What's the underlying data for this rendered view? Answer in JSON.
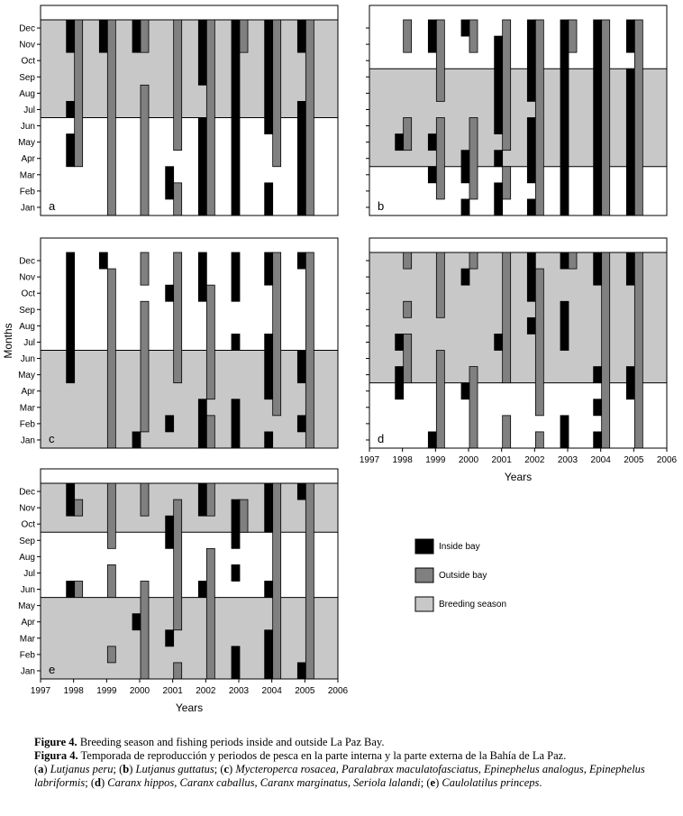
{
  "chart_data": {
    "type": "bar",
    "ylabel": "Months",
    "xlabel": "Years",
    "months": [
      "Jan",
      "Feb",
      "Mar",
      "Apr",
      "May",
      "Jun",
      "Jul",
      "Aug",
      "Sep",
      "Oct",
      "Nov",
      "Dec"
    ],
    "years": [
      "1997",
      "1998",
      "1999",
      "2000",
      "2001",
      "2002",
      "2003",
      "2004",
      "2005",
      "2006"
    ],
    "xlim": [
      1997,
      2006
    ],
    "legend": [
      {
        "key": "inside",
        "label": "Inside bay",
        "color": "#000000"
      },
      {
        "key": "outside",
        "label": "Outside bay",
        "color": "#808080"
      },
      {
        "key": "breeding",
        "label": "Breeding season",
        "color": "#c8c8c8"
      }
    ],
    "panels": [
      {
        "letter": "a",
        "breeding": [
          {
            "start": 7,
            "end": 12
          }
        ],
        "series": [
          {
            "name": "Inside bay",
            "key": "inside",
            "bars": [
              {
                "year": 1998,
                "start": 11,
                "end": 12
              },
              {
                "year": 1998,
                "start": 7,
                "end": 7
              },
              {
                "year": 1998,
                "start": 4,
                "end": 5
              },
              {
                "year": 1999,
                "start": 11,
                "end": 12
              },
              {
                "year": 2000,
                "start": 11,
                "end": 12
              },
              {
                "year": 2001,
                "start": 2,
                "end": 3
              },
              {
                "year": 2002,
                "start": 9,
                "end": 12
              },
              {
                "year": 2002,
                "start": 1,
                "end": 6
              },
              {
                "year": 2003,
                "start": 1,
                "end": 12
              },
              {
                "year": 2004,
                "start": 6,
                "end": 12
              },
              {
                "year": 2004,
                "start": 1,
                "end": 2
              },
              {
                "year": 2005,
                "start": 11,
                "end": 12
              },
              {
                "year": 2005,
                "start": 1,
                "end": 7
              }
            ]
          },
          {
            "name": "Outside bay",
            "key": "outside",
            "bars": [
              {
                "year": 1998,
                "start": 4,
                "end": 12
              },
              {
                "year": 1999,
                "start": 1,
                "end": 12
              },
              {
                "year": 2000,
                "start": 11,
                "end": 12
              },
              {
                "year": 2000,
                "start": 1,
                "end": 8
              },
              {
                "year": 2001,
                "start": 1,
                "end": 2
              },
              {
                "year": 2001,
                "start": 5,
                "end": 12
              },
              {
                "year": 2002,
                "start": 1,
                "end": 12
              },
              {
                "year": 2003,
                "start": 11,
                "end": 12
              },
              {
                "year": 2004,
                "start": 4,
                "end": 12
              },
              {
                "year": 2005,
                "start": 1,
                "end": 12
              }
            ]
          }
        ]
      },
      {
        "letter": "b",
        "breeding": [
          {
            "start": 4,
            "end": 9
          }
        ],
        "series": [
          {
            "name": "Inside bay",
            "key": "inside",
            "bars": [
              {
                "year": 1998,
                "start": 5,
                "end": 5
              },
              {
                "year": 1999,
                "start": 11,
                "end": 12
              },
              {
                "year": 1999,
                "start": 5,
                "end": 5
              },
              {
                "year": 1999,
                "start": 3,
                "end": 3
              },
              {
                "year": 2000,
                "start": 12,
                "end": 12
              },
              {
                "year": 2000,
                "start": 3,
                "end": 4
              },
              {
                "year": 2000,
                "start": 1,
                "end": 1
              },
              {
                "year": 2001,
                "start": 6,
                "end": 11
              },
              {
                "year": 2001,
                "start": 4,
                "end": 4
              },
              {
                "year": 2001,
                "start": 1,
                "end": 2
              },
              {
                "year": 2002,
                "start": 8,
                "end": 12
              },
              {
                "year": 2002,
                "start": 3,
                "end": 6
              },
              {
                "year": 2002,
                "start": 1,
                "end": 1
              },
              {
                "year": 2003,
                "start": 1,
                "end": 12
              },
              {
                "year": 2004,
                "start": 1,
                "end": 12
              },
              {
                "year": 2005,
                "start": 11,
                "end": 12
              },
              {
                "year": 2005,
                "start": 1,
                "end": 9
              }
            ]
          },
          {
            "name": "Outside bay",
            "key": "outside",
            "bars": [
              {
                "year": 1998,
                "start": 11,
                "end": 12
              },
              {
                "year": 1998,
                "start": 5,
                "end": 6
              },
              {
                "year": 1999,
                "start": 8,
                "end": 12
              },
              {
                "year": 1999,
                "start": 2,
                "end": 6
              },
              {
                "year": 2000,
                "start": 11,
                "end": 12
              },
              {
                "year": 2000,
                "start": 2,
                "end": 6
              },
              {
                "year": 2001,
                "start": 5,
                "end": 12
              },
              {
                "year": 2001,
                "start": 2,
                "end": 3
              },
              {
                "year": 2002,
                "start": 1,
                "end": 12
              },
              {
                "year": 2003,
                "start": 11,
                "end": 12
              },
              {
                "year": 2004,
                "start": 1,
                "end": 12
              },
              {
                "year": 2005,
                "start": 1,
                "end": 12
              }
            ]
          }
        ]
      },
      {
        "letter": "c",
        "breeding": [
          {
            "start": 1,
            "end": 6
          }
        ],
        "series": [
          {
            "name": "Inside bay",
            "key": "inside",
            "bars": [
              {
                "year": 1998,
                "start": 5,
                "end": 12
              },
              {
                "year": 1999,
                "start": 12,
                "end": 12
              },
              {
                "year": 2000,
                "start": 1,
                "end": 1
              },
              {
                "year": 2001,
                "start": 10,
                "end": 10
              },
              {
                "year": 2001,
                "start": 2,
                "end": 2
              },
              {
                "year": 2002,
                "start": 10,
                "end": 12
              },
              {
                "year": 2002,
                "start": 1,
                "end": 3
              },
              {
                "year": 2003,
                "start": 10,
                "end": 12
              },
              {
                "year": 2003,
                "start": 7,
                "end": 7
              },
              {
                "year": 2003,
                "start": 1,
                "end": 3
              },
              {
                "year": 2004,
                "start": 11,
                "end": 12
              },
              {
                "year": 2004,
                "start": 4,
                "end": 7
              },
              {
                "year": 2004,
                "start": 1,
                "end": 1
              },
              {
                "year": 2005,
                "start": 12,
                "end": 12
              },
              {
                "year": 2005,
                "start": 5,
                "end": 6
              },
              {
                "year": 2005,
                "start": 2,
                "end": 2
              }
            ]
          },
          {
            "name": "Outside bay",
            "key": "outside",
            "bars": [
              {
                "year": 1999,
                "start": 1,
                "end": 11
              },
              {
                "year": 2000,
                "start": 11,
                "end": 12
              },
              {
                "year": 2000,
                "start": 2,
                "end": 9
              },
              {
                "year": 2001,
                "start": 5,
                "end": 12
              },
              {
                "year": 2002,
                "start": 4,
                "end": 10
              },
              {
                "year": 2002,
                "start": 1,
                "end": 2
              },
              {
                "year": 2004,
                "start": 3,
                "end": 12
              },
              {
                "year": 2005,
                "start": 1,
                "end": 12
              }
            ]
          }
        ]
      },
      {
        "letter": "d",
        "breeding": [
          {
            "start": 5,
            "end": 12
          }
        ],
        "series": [
          {
            "name": "Inside bay",
            "key": "inside",
            "bars": [
              {
                "year": 1998,
                "start": 7,
                "end": 7
              },
              {
                "year": 1998,
                "start": 4,
                "end": 5
              },
              {
                "year": 1999,
                "start": 1,
                "end": 1
              },
              {
                "year": 2000,
                "start": 11,
                "end": 11
              },
              {
                "year": 2000,
                "start": 4,
                "end": 4
              },
              {
                "year": 2001,
                "start": 7,
                "end": 7
              },
              {
                "year": 2002,
                "start": 10,
                "end": 12
              },
              {
                "year": 2002,
                "start": 8,
                "end": 8
              },
              {
                "year": 2003,
                "start": 12,
                "end": 12
              },
              {
                "year": 2003,
                "start": 7,
                "end": 9
              },
              {
                "year": 2003,
                "start": 1,
                "end": 2
              },
              {
                "year": 2004,
                "start": 11,
                "end": 12
              },
              {
                "year": 2004,
                "start": 5,
                "end": 5
              },
              {
                "year": 2004,
                "start": 3,
                "end": 3
              },
              {
                "year": 2004,
                "start": 1,
                "end": 1
              },
              {
                "year": 2005,
                "start": 11,
                "end": 12
              },
              {
                "year": 2005,
                "start": 4,
                "end": 5
              }
            ]
          },
          {
            "name": "Outside bay",
            "key": "outside",
            "bars": [
              {
                "year": 1998,
                "start": 12,
                "end": 12
              },
              {
                "year": 1998,
                "start": 9,
                "end": 9
              },
              {
                "year": 1998,
                "start": 5,
                "end": 7
              },
              {
                "year": 1999,
                "start": 9,
                "end": 12
              },
              {
                "year": 1999,
                "start": 1,
                "end": 6
              },
              {
                "year": 2000,
                "start": 12,
                "end": 12
              },
              {
                "year": 2000,
                "start": 1,
                "end": 5
              },
              {
                "year": 2001,
                "start": 5,
                "end": 12
              },
              {
                "year": 2001,
                "start": 1,
                "end": 2
              },
              {
                "year": 2002,
                "start": 3,
                "end": 11
              },
              {
                "year": 2002,
                "start": 1,
                "end": 1
              },
              {
                "year": 2003,
                "start": 12,
                "end": 12
              },
              {
                "year": 2004,
                "start": 1,
                "end": 12
              },
              {
                "year": 2005,
                "start": 1,
                "end": 12
              }
            ]
          }
        ]
      },
      {
        "letter": "e",
        "breeding": [
          {
            "start": 1,
            "end": 5
          },
          {
            "start": 10,
            "end": 12
          }
        ],
        "series": [
          {
            "name": "Inside bay",
            "key": "inside",
            "bars": [
              {
                "year": 1998,
                "start": 11,
                "end": 12
              },
              {
                "year": 1998,
                "start": 6,
                "end": 6
              },
              {
                "year": 2000,
                "start": 4,
                "end": 4
              },
              {
                "year": 2001,
                "start": 9,
                "end": 10
              },
              {
                "year": 2001,
                "start": 3,
                "end": 3
              },
              {
                "year": 2002,
                "start": 11,
                "end": 12
              },
              {
                "year": 2002,
                "start": 6,
                "end": 6
              },
              {
                "year": 2003,
                "start": 9,
                "end": 11
              },
              {
                "year": 2003,
                "start": 7,
                "end": 7
              },
              {
                "year": 2003,
                "start": 1,
                "end": 2
              },
              {
                "year": 2004,
                "start": 10,
                "end": 12
              },
              {
                "year": 2004,
                "start": 6,
                "end": 6
              },
              {
                "year": 2004,
                "start": 1,
                "end": 3
              },
              {
                "year": 2005,
                "start": 12,
                "end": 12
              },
              {
                "year": 2005,
                "start": 1,
                "end": 1
              }
            ]
          },
          {
            "name": "Outside bay",
            "key": "outside",
            "bars": [
              {
                "year": 1998,
                "start": 11,
                "end": 11
              },
              {
                "year": 1998,
                "start": 6,
                "end": 6
              },
              {
                "year": 1999,
                "start": 9,
                "end": 12
              },
              {
                "year": 1999,
                "start": 6,
                "end": 7
              },
              {
                "year": 1999,
                "start": 2,
                "end": 2
              },
              {
                "year": 2000,
                "start": 11,
                "end": 12
              },
              {
                "year": 2000,
                "start": 1,
                "end": 6
              },
              {
                "year": 2001,
                "start": 4,
                "end": 11
              },
              {
                "year": 2001,
                "start": 1,
                "end": 1
              },
              {
                "year": 2002,
                "start": 11,
                "end": 12
              },
              {
                "year": 2002,
                "start": 1,
                "end": 8
              },
              {
                "year": 2003,
                "start": 10,
                "end": 11
              },
              {
                "year": 2004,
                "start": 1,
                "end": 12
              },
              {
                "year": 2005,
                "start": 1,
                "end": 12
              }
            ]
          }
        ]
      }
    ]
  },
  "caption": {
    "line1_label": "Figure 4.",
    "line1_text": " Breeding season and fishing periods inside and outside La Paz Bay.",
    "line2_label": "Figura 4.",
    "line2_text": " Temporada de reproducción y periodos de pesca en la parte interna y la parte externa de la Bahía de La Paz.",
    "species": [
      {
        "letter": "a",
        "text": "Lutjanus peru"
      },
      {
        "letter": "b",
        "text": "Lutjanus guttatus"
      },
      {
        "letter": "c",
        "text": "Mycteroperca rosacea, Paralabrax maculatofasciatus, Epinephelus analogus, Epinephelus labriformis"
      },
      {
        "letter": "d",
        "text": "Caranx hippos, Caranx caballus, Caranx marginatus, Seriola lalandi"
      },
      {
        "letter": "e",
        "text": "Caulolatilus princeps"
      }
    ]
  }
}
